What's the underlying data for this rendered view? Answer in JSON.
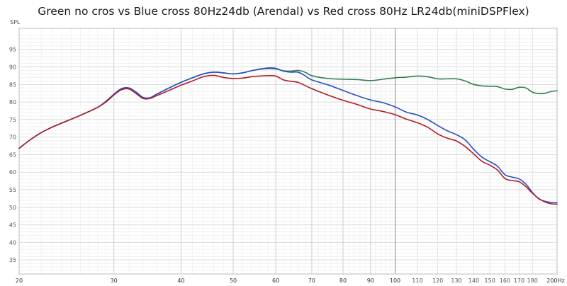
{
  "chart_data": {
    "type": "line",
    "title": "Green no cros vs Blue cross 80Hz24db (Arendal) vs Red cross 80Hz LR24db(miniDSPFlex)",
    "ylabel": "SPL",
    "xlabel": "",
    "x_unit_label": "200Hz",
    "x_scale": "log",
    "xlim": [
      20,
      200
    ],
    "ylim": [
      31,
      101
    ],
    "grid": true,
    "y_ticks": [
      35,
      40,
      45,
      50,
      55,
      60,
      65,
      70,
      75,
      80,
      85,
      90,
      95
    ],
    "x_ticks": [
      {
        "value": 20,
        "label": "20",
        "major": true
      },
      {
        "value": 30,
        "label": "30",
        "major": true
      },
      {
        "value": 40,
        "label": "40",
        "major": true
      },
      {
        "value": 50,
        "label": "50",
        "major": true
      },
      {
        "value": 60,
        "label": "60",
        "major": true
      },
      {
        "value": 70,
        "label": "70",
        "major": true
      },
      {
        "value": 80,
        "label": "80",
        "major": true
      },
      {
        "value": 90,
        "label": "90",
        "major": true
      },
      {
        "value": 100,
        "label": "100",
        "major": true
      },
      {
        "value": 110,
        "label": "110",
        "major": false
      },
      {
        "value": 120,
        "label": "120",
        "major": false
      },
      {
        "value": 130,
        "label": "130",
        "major": false
      },
      {
        "value": 140,
        "label": "140",
        "major": false
      },
      {
        "value": 150,
        "label": "150",
        "major": false
      },
      {
        "value": 160,
        "label": "160",
        "major": false
      },
      {
        "value": 170,
        "label": "170",
        "major": false
      },
      {
        "value": 180,
        "label": "180",
        "major": false
      }
    ],
    "series": [
      {
        "color": "#2e7d4f",
        "points": [
          [
            20,
            66.8
          ],
          [
            21,
            69.3
          ],
          [
            22,
            71.3
          ],
          [
            23,
            72.8
          ],
          [
            24,
            74.0
          ],
          [
            26,
            76.2
          ],
          [
            28,
            78.5
          ],
          [
            29,
            80.2
          ],
          [
            30,
            82.2
          ],
          [
            31,
            83.8
          ],
          [
            32,
            84.0
          ],
          [
            33,
            82.8
          ],
          [
            34,
            81.3
          ],
          [
            35,
            81.2
          ],
          [
            36,
            82.2
          ],
          [
            38,
            84.0
          ],
          [
            40,
            85.6
          ],
          [
            42,
            86.9
          ],
          [
            44,
            88.0
          ],
          [
            46,
            88.5
          ],
          [
            48,
            88.3
          ],
          [
            50,
            88.0
          ],
          [
            52,
            88.3
          ],
          [
            54,
            88.9
          ],
          [
            56,
            89.3
          ],
          [
            58,
            89.5
          ],
          [
            60,
            89.4
          ],
          [
            62,
            88.9
          ],
          [
            64,
            88.8
          ],
          [
            66,
            89.0
          ],
          [
            68,
            88.5
          ],
          [
            70,
            87.5
          ],
          [
            75,
            86.7
          ],
          [
            80,
            86.5
          ],
          [
            85,
            86.4
          ],
          [
            90,
            86.1
          ],
          [
            95,
            86.5
          ],
          [
            100,
            86.9
          ],
          [
            105,
            87.1
          ],
          [
            110,
            87.4
          ],
          [
            115,
            87.2
          ],
          [
            120,
            86.6
          ],
          [
            125,
            86.6
          ],
          [
            130,
            86.6
          ],
          [
            135,
            86.0
          ],
          [
            140,
            85.0
          ],
          [
            145,
            84.6
          ],
          [
            150,
            84.5
          ],
          [
            155,
            84.4
          ],
          [
            160,
            83.7
          ],
          [
            165,
            83.6
          ],
          [
            170,
            84.2
          ],
          [
            175,
            84.0
          ],
          [
            180,
            82.8
          ],
          [
            185,
            82.4
          ],
          [
            190,
            82.5
          ],
          [
            195,
            83.0
          ],
          [
            200,
            83.2
          ]
        ]
      },
      {
        "color": "#2b4fc4",
        "points": [
          [
            20,
            66.8
          ],
          [
            21,
            69.3
          ],
          [
            22,
            71.3
          ],
          [
            23,
            72.8
          ],
          [
            24,
            74.0
          ],
          [
            26,
            76.2
          ],
          [
            28,
            78.5
          ],
          [
            29,
            80.2
          ],
          [
            30,
            82.2
          ],
          [
            31,
            83.8
          ],
          [
            32,
            84.0
          ],
          [
            33,
            82.8
          ],
          [
            34,
            81.3
          ],
          [
            35,
            81.2
          ],
          [
            36,
            82.2
          ],
          [
            38,
            84.0
          ],
          [
            40,
            85.6
          ],
          [
            42,
            86.9
          ],
          [
            44,
            88.0
          ],
          [
            46,
            88.5
          ],
          [
            48,
            88.3
          ],
          [
            50,
            88.0
          ],
          [
            52,
            88.3
          ],
          [
            54,
            88.9
          ],
          [
            56,
            89.4
          ],
          [
            58,
            89.7
          ],
          [
            60,
            89.6
          ],
          [
            62,
            88.8
          ],
          [
            64,
            88.5
          ],
          [
            66,
            88.5
          ],
          [
            68,
            87.5
          ],
          [
            70,
            86.3
          ],
          [
            75,
            84.9
          ],
          [
            80,
            83.3
          ],
          [
            85,
            81.8
          ],
          [
            90,
            80.6
          ],
          [
            95,
            79.8
          ],
          [
            100,
            78.6
          ],
          [
            105,
            77.1
          ],
          [
            110,
            76.3
          ],
          [
            115,
            75.0
          ],
          [
            120,
            73.3
          ],
          [
            125,
            71.8
          ],
          [
            130,
            70.7
          ],
          [
            135,
            69.2
          ],
          [
            140,
            66.5
          ],
          [
            145,
            64.3
          ],
          [
            150,
            63.0
          ],
          [
            155,
            61.7
          ],
          [
            160,
            59.3
          ],
          [
            165,
            58.6
          ],
          [
            170,
            58.1
          ],
          [
            175,
            56.6
          ],
          [
            180,
            54.2
          ],
          [
            185,
            52.4
          ],
          [
            190,
            51.7
          ],
          [
            195,
            51.4
          ],
          [
            200,
            51.3
          ]
        ]
      },
      {
        "color": "#b01c24",
        "points": [
          [
            20,
            66.8
          ],
          [
            21,
            69.3
          ],
          [
            22,
            71.3
          ],
          [
            23,
            72.8
          ],
          [
            24,
            74.0
          ],
          [
            26,
            76.2
          ],
          [
            28,
            78.5
          ],
          [
            29,
            80.0
          ],
          [
            30,
            82.0
          ],
          [
            31,
            83.5
          ],
          [
            32,
            83.7
          ],
          [
            33,
            82.4
          ],
          [
            34,
            81.0
          ],
          [
            35,
            81.0
          ],
          [
            36,
            81.8
          ],
          [
            38,
            83.3
          ],
          [
            40,
            84.8
          ],
          [
            42,
            86.0
          ],
          [
            44,
            87.2
          ],
          [
            46,
            87.6
          ],
          [
            48,
            87.0
          ],
          [
            50,
            86.7
          ],
          [
            52,
            86.8
          ],
          [
            54,
            87.2
          ],
          [
            56,
            87.4
          ],
          [
            58,
            87.5
          ],
          [
            60,
            87.4
          ],
          [
            62,
            86.3
          ],
          [
            64,
            85.9
          ],
          [
            66,
            85.6
          ],
          [
            68,
            84.7
          ],
          [
            70,
            83.8
          ],
          [
            75,
            82.0
          ],
          [
            80,
            80.5
          ],
          [
            85,
            79.3
          ],
          [
            90,
            78.0
          ],
          [
            95,
            77.3
          ],
          [
            100,
            76.4
          ],
          [
            105,
            75.1
          ],
          [
            110,
            74.1
          ],
          [
            115,
            72.8
          ],
          [
            120,
            70.9
          ],
          [
            125,
            69.7
          ],
          [
            130,
            68.9
          ],
          [
            135,
            67.3
          ],
          [
            140,
            65.2
          ],
          [
            145,
            63.1
          ],
          [
            150,
            62.0
          ],
          [
            155,
            60.6
          ],
          [
            160,
            58.2
          ],
          [
            165,
            57.6
          ],
          [
            170,
            57.3
          ],
          [
            175,
            55.9
          ],
          [
            180,
            54.0
          ],
          [
            185,
            52.5
          ],
          [
            190,
            51.5
          ],
          [
            195,
            51.0
          ],
          [
            200,
            50.9
          ]
        ]
      }
    ]
  }
}
